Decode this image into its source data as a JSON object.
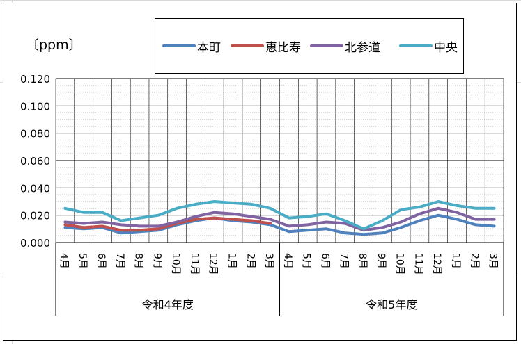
{
  "chart_data": {
    "type": "line",
    "title": "",
    "unit_label": "〔ppm〕",
    "xlabel": "",
    "ylabel": "",
    "ylim": [
      0,
      0.12
    ],
    "yticks": [
      "0.000",
      "0.020",
      "0.040",
      "0.060",
      "0.080",
      "0.100",
      "0.120"
    ],
    "grid": true,
    "legend_position": "top-center",
    "categories": [
      "4月",
      "5月",
      "6月",
      "7月",
      "8月",
      "9月",
      "10月",
      "11月",
      "12月",
      "1月",
      "2月",
      "3月",
      "4月",
      "5月",
      "6月",
      "7月",
      "8月",
      "9月",
      "10月",
      "11月",
      "12月",
      "1月",
      "2月",
      "3月"
    ],
    "groups": [
      {
        "label": "令和4年度",
        "span": 12
      },
      {
        "label": "令和5年度",
        "span": 12
      }
    ],
    "series": [
      {
        "name": "本町",
        "color": "#4f81bd",
        "values": [
          0.011,
          0.01,
          0.011,
          0.007,
          0.008,
          0.009,
          0.013,
          0.016,
          0.018,
          0.016,
          0.015,
          0.013,
          0.008,
          0.009,
          0.01,
          0.007,
          0.006,
          0.007,
          0.011,
          0.016,
          0.02,
          0.017,
          0.013,
          0.012
        ]
      },
      {
        "name": "恵比寿",
        "color": "#c0504d",
        "values": [
          0.013,
          0.011,
          0.012,
          0.009,
          0.009,
          0.01,
          0.014,
          0.017,
          0.018,
          0.017,
          0.016,
          0.014,
          null,
          null,
          null,
          null,
          null,
          null,
          null,
          null,
          null,
          null,
          null,
          null
        ]
      },
      {
        "name": "北参道",
        "color": "#8064a2",
        "values": [
          0.015,
          0.014,
          0.015,
          0.013,
          0.012,
          0.012,
          0.015,
          0.019,
          0.022,
          0.021,
          0.019,
          0.017,
          0.012,
          0.013,
          0.015,
          0.014,
          0.009,
          0.011,
          0.015,
          0.021,
          0.025,
          0.022,
          0.017,
          0.017
        ]
      },
      {
        "name": "中央",
        "color": "#4bacc6",
        "values": [
          0.025,
          0.022,
          0.022,
          0.016,
          0.018,
          0.02,
          0.025,
          0.028,
          0.03,
          0.029,
          0.028,
          0.025,
          0.018,
          0.019,
          0.021,
          0.016,
          0.01,
          0.016,
          0.024,
          0.026,
          0.03,
          0.027,
          0.025,
          0.025
        ]
      }
    ]
  }
}
